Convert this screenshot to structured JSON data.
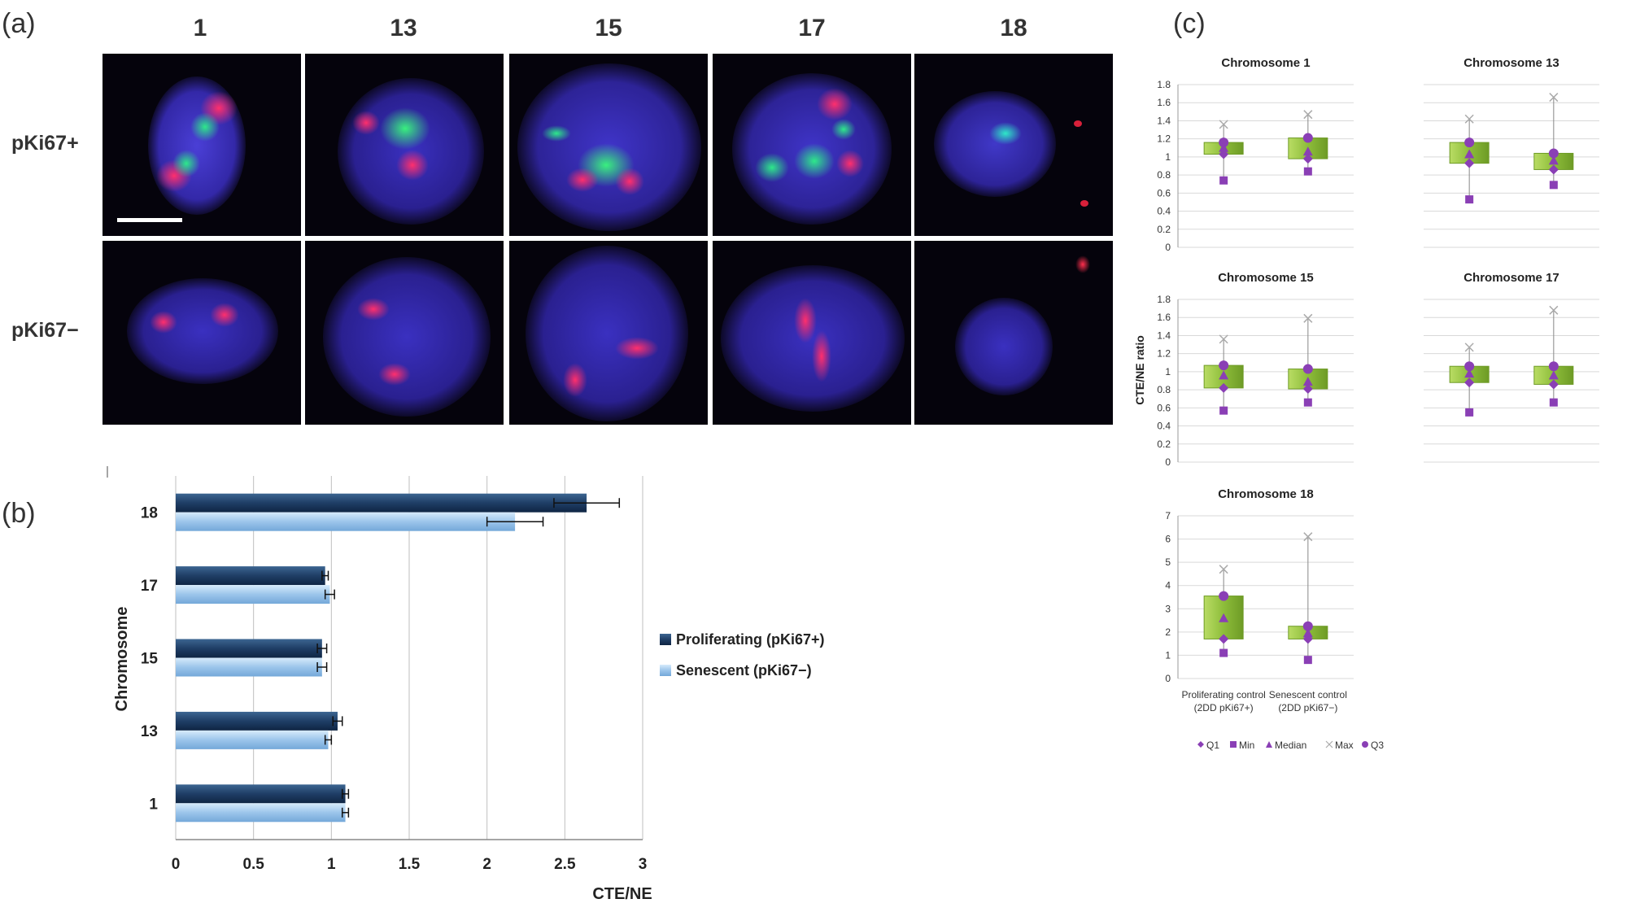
{
  "panel_labels": {
    "a": "(a)",
    "b": "(b)",
    "c": "(c)"
  },
  "panel_a": {
    "columns": [
      "1",
      "13",
      "15",
      "17",
      "18"
    ],
    "rows": [
      "pKi67+",
      "pKi67−"
    ]
  },
  "chart_data": [
    {
      "id": "b",
      "type": "bar",
      "orientation": "horizontal",
      "categories": [
        "1",
        "13",
        "15",
        "17",
        "18"
      ],
      "series": [
        {
          "name": "Proliferating (pKi67+)",
          "values": [
            1.09,
            1.04,
            0.94,
            0.96,
            2.64
          ],
          "errors": [
            0.02,
            0.03,
            0.03,
            0.02,
            0.21
          ]
        },
        {
          "name": "Senescent (pKi67−)",
          "values": [
            1.09,
            0.98,
            0.94,
            0.99,
            2.18
          ],
          "errors": [
            0.02,
            0.02,
            0.03,
            0.03,
            0.18
          ]
        }
      ],
      "xlabel": "CTE/NE",
      "ylabel": "Chromosome",
      "xlim": [
        0,
        3
      ],
      "xticks": [
        "0",
        "0.5",
        "1",
        "1.5",
        "2",
        "2.5",
        "3"
      ],
      "grid": true,
      "legend": "right",
      "colors": {
        "proliferating": "#1f3e66",
        "senescent": "#9cc5eb"
      }
    },
    {
      "id": "c",
      "type": "box",
      "ylabel": "CTE/NE ratio",
      "categories": [
        "Proliferating control\n(2DD pKi67+)",
        "Senescent control\n(2DD pKi67−)"
      ],
      "category_lines": [
        [
          "Proliferating control",
          "(2DD pKi67+)"
        ],
        [
          "Senescent control",
          "(2DD pKi67−)"
        ]
      ],
      "legend": [
        "Q1",
        "Min",
        "Median",
        "Max",
        "Q3"
      ],
      "colors": {
        "box": "#8dbd3a",
        "marker": "#8a3fb5",
        "max_marker": "#aaaaaa"
      },
      "subplots": [
        {
          "title": "Chromosome 1",
          "ylim": [
            0,
            1.8
          ],
          "yticks": [
            "0",
            "0.2",
            "0.4",
            "0.6",
            "0.8",
            "1",
            "1.2",
            "1.4",
            "1.6",
            "1.8"
          ],
          "boxes": [
            {
              "min": 0.74,
              "q1": 1.03,
              "median": 1.1,
              "q3": 1.16,
              "max": 1.36
            },
            {
              "min": 0.84,
              "q1": 0.98,
              "median": 1.06,
              "q3": 1.21,
              "max": 1.47
            }
          ]
        },
        {
          "title": "Chromosome 13",
          "ylim": [
            0,
            1.8
          ],
          "yticks": [
            "0",
            "0.2",
            "0.4",
            "0.6",
            "0.8",
            "1",
            "1.2",
            "1.4",
            "1.6",
            "1.8"
          ],
          "boxes": [
            {
              "min": 0.53,
              "q1": 0.93,
              "median": 1.03,
              "q3": 1.16,
              "max": 1.42
            },
            {
              "min": 0.69,
              "q1": 0.86,
              "median": 0.96,
              "q3": 1.04,
              "max": 1.66
            }
          ]
        },
        {
          "title": "Chromosome 15",
          "ylim": [
            0,
            1.8
          ],
          "yticks": [
            "0",
            "0.2",
            "0.4",
            "0.6",
            "0.8",
            "1",
            "1.2",
            "1.4",
            "1.6",
            "1.8"
          ],
          "boxes": [
            {
              "min": 0.57,
              "q1": 0.82,
              "median": 0.96,
              "q3": 1.07,
              "max": 1.36
            },
            {
              "min": 0.66,
              "q1": 0.81,
              "median": 0.89,
              "q3": 1.03,
              "max": 1.59
            }
          ]
        },
        {
          "title": "Chromosome 17",
          "ylim": [
            0,
            1.8
          ],
          "yticks": [
            "0",
            "0.2",
            "0.4",
            "0.6",
            "0.8",
            "1",
            "1.2",
            "1.4",
            "1.6",
            "1.8"
          ],
          "boxes": [
            {
              "min": 0.55,
              "q1": 0.88,
              "median": 0.98,
              "q3": 1.06,
              "max": 1.27
            },
            {
              "min": 0.66,
              "q1": 0.86,
              "median": 0.96,
              "q3": 1.06,
              "max": 1.68
            }
          ]
        },
        {
          "title": "Chromosome 18",
          "ylim": [
            0,
            7
          ],
          "yticks": [
            "0",
            "1",
            "2",
            "3",
            "4",
            "5",
            "6",
            "7"
          ],
          "boxes": [
            {
              "min": 1.1,
              "q1": 1.7,
              "median": 2.6,
              "q3": 3.55,
              "max": 4.7
            },
            {
              "min": 0.8,
              "q1": 1.7,
              "median": 1.95,
              "q3": 2.25,
              "max": 6.1
            }
          ]
        }
      ]
    }
  ]
}
